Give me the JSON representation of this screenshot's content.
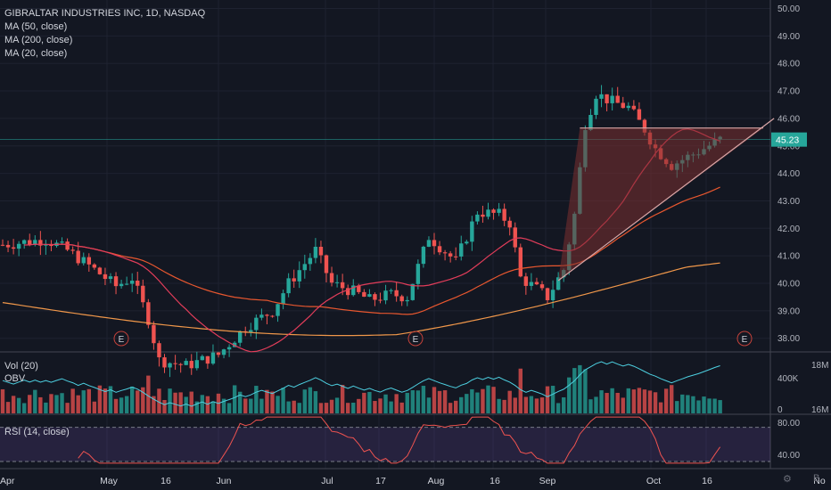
{
  "header": {
    "title": "GIBRALTAR INDUSTRIES INC, 1D, NASDAQ",
    "studies": [
      "MA (50, close)",
      "MA (200, close)",
      "MA (20, close)"
    ],
    "volume_label": "Vol (20)",
    "obv_label": "OBV",
    "rsi_label": "RSI (14, close)"
  },
  "colors": {
    "background": "#131722",
    "grid": "#1e2230",
    "up": "#26a69a",
    "down": "#ef5350",
    "ma50": "#e8572f",
    "ma200": "#f0974a",
    "ma20": "#e33d5a",
    "obv": "#4dd0e1",
    "rsi": "#ef5350",
    "price_line": "#26a69a",
    "triangle_fill": "#7b2f2f",
    "triangle_line": "#d9a7a7"
  },
  "icons": [
    "settings-icon",
    "watermark-icon"
  ],
  "chart_data": [
    {
      "type": "candlestick",
      "title": "GIBRALTAR INDUSTRIES INC, 1D, NASDAQ",
      "y_ticks": [
        "38.00",
        "39.00",
        "40.00",
        "41.00",
        "42.00",
        "43.00",
        "44.00",
        "45.00",
        "46.00",
        "47.00",
        "48.00",
        "49.00",
        "50.00"
      ],
      "ylim": [
        37.6,
        50.2
      ],
      "x_ticks": [
        "Apr",
        "May",
        "16",
        "Jun",
        "Jul",
        "17",
        "Aug",
        "16",
        "Sep",
        "Oct",
        "16",
        "No"
      ],
      "last_price": "45.23",
      "earnings_markers": [
        "E",
        "E",
        "E"
      ],
      "series": [
        {
          "name": "MA (50, close)"
        },
        {
          "name": "MA (200, close)"
        },
        {
          "name": "MA (20, close)"
        }
      ],
      "pattern": "ascending triangle"
    },
    {
      "type": "bar",
      "name": "Vol (20)",
      "y_ticks": [
        "0",
        "400K"
      ],
      "secondary_y_ticks": [
        "18M",
        "16M"
      ],
      "series": [
        {
          "name": "OBV"
        }
      ]
    },
    {
      "type": "line",
      "name": "RSI (14, close)",
      "y_ticks": [
        "80.00",
        "40.00"
      ],
      "bands": [
        70,
        30
      ]
    }
  ]
}
